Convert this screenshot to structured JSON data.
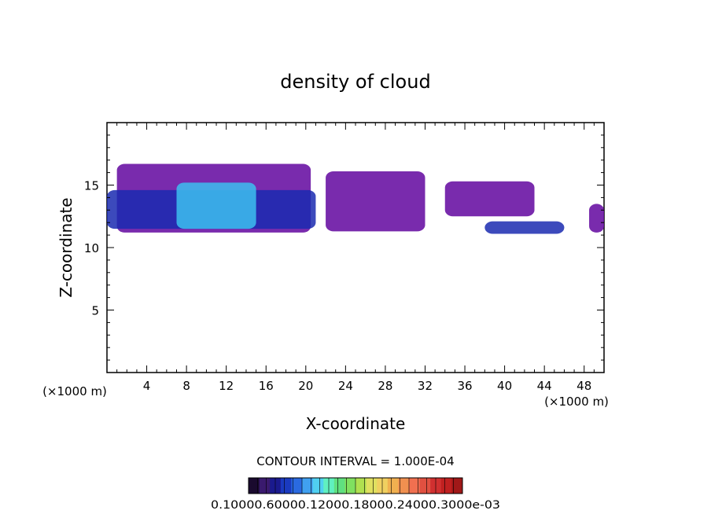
{
  "chart_data": {
    "type": "heatmap",
    "title": "density of cloud",
    "xlabel": "X-coordinate",
    "ylabel": "Z-coordinate",
    "x_unit_left": "(×1000 m)",
    "x_unit_right": "(×1000 m)",
    "xlim": [
      0,
      50
    ],
    "ylim": [
      0,
      20
    ],
    "x_ticks": [
      4,
      8,
      12,
      16,
      20,
      24,
      28,
      32,
      36,
      40,
      44,
      48
    ],
    "y_ticks": [
      5,
      10,
      15
    ],
    "contour_interval_label": "CONTOUR INTERVAL = 1.000E-04",
    "colorbar": {
      "levels": 24,
      "colors": [
        "#1a0a2e",
        "#3a1a6e",
        "#1a1a8e",
        "#1a3ac0",
        "#2a6ae0",
        "#40a0f0",
        "#50d0f0",
        "#60f0c0",
        "#60e080",
        "#80e060",
        "#b0e050",
        "#e0e060",
        "#f0d060",
        "#f0b050",
        "#f09050",
        "#f07050",
        "#e05040",
        "#d03030",
        "#c02020",
        "#a01818"
      ],
      "labels": [
        "0.1000e-05",
        "0.6000e-04",
        "0.1200e-03",
        "0.1800e-03",
        "0.2400e-03",
        "0.3000e-03"
      ],
      "label_text": "0.10000.60000.12000.18000.24000.3000e-03"
    },
    "cloud_regions": [
      {
        "x": [
          1,
          20.5
        ],
        "z": [
          11.2,
          16.7
        ],
        "level": "low"
      },
      {
        "x": [
          0,
          21
        ],
        "z": [
          11.5,
          14.6
        ],
        "level": "medium"
      },
      {
        "x": [
          7,
          15
        ],
        "z": [
          11.5,
          15.2
        ],
        "level": "high"
      },
      {
        "x": [
          22,
          32
        ],
        "z": [
          11.3,
          16.1
        ],
        "level": "low"
      },
      {
        "x": [
          34,
          43
        ],
        "z": [
          12.5,
          15.3
        ],
        "level": "low"
      },
      {
        "x": [
          38,
          46
        ],
        "z": [
          11.1,
          12.1
        ],
        "level": "medium"
      },
      {
        "x": [
          48.5,
          50
        ],
        "z": [
          11.2,
          13.5
        ],
        "level": "low"
      }
    ],
    "colors": {
      "low": "#6a14a4",
      "medium": "#1a2ab0",
      "high": "#3cc0f0"
    }
  }
}
